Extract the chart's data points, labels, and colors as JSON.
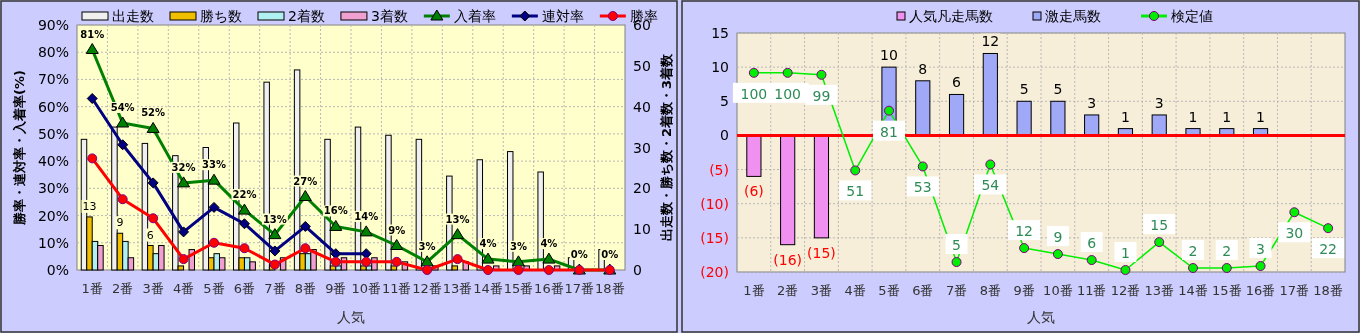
{
  "chart_data": [
    {
      "type": "bar",
      "legend": "top",
      "grid": true,
      "xlabel": "人気",
      "ylabel": "勝率・連対率・入着率(%)",
      "y2label": "出走数・勝ち数・2着数・3着数",
      "categories": [
        "1番",
        "2番",
        "3番",
        "4番",
        "5番",
        "6番",
        "7番",
        "8番",
        "9番",
        "10番",
        "11番",
        "12番",
        "13番",
        "14番",
        "15番",
        "16番",
        "17番",
        "18番"
      ],
      "ylim": [
        0,
        90
      ],
      "yticks": [
        {
          "value": 0,
          "label": "0%"
        },
        {
          "value": 10,
          "label": "10%"
        },
        {
          "value": 20,
          "label": "20%"
        },
        {
          "value": 30,
          "label": "30%"
        },
        {
          "value": 40,
          "label": "40%"
        },
        {
          "value": 50,
          "label": "50%"
        },
        {
          "value": 60,
          "label": "60%"
        },
        {
          "value": 70,
          "label": "70%"
        },
        {
          "value": 80,
          "label": "80%"
        },
        {
          "value": 90,
          "label": "90%"
        }
      ],
      "y2lim": [
        0,
        60
      ],
      "y2ticks": [
        0,
        10,
        20,
        30,
        40,
        50,
        60
      ],
      "series": [
        {
          "name": "出走数",
          "axis": "y2",
          "color": "#f0f0f0",
          "values": [
            32,
            35,
            31,
            28,
            30,
            36,
            46,
            49,
            32,
            35,
            33,
            32,
            23,
            27,
            29,
            24,
            3,
            5
          ]
        },
        {
          "name": "勝ち数",
          "axis": "y2",
          "color": "#f0c000",
          "values": [
            13,
            9,
            6,
            1,
            3,
            3,
            1,
            4,
            1,
            1,
            1,
            0,
            1,
            0,
            0,
            0,
            0,
            0
          ],
          "value_labels": [
            "13",
            "9",
            "6",
            null,
            null,
            null,
            null,
            null,
            null,
            null,
            null,
            null,
            null,
            null,
            null,
            null,
            null,
            null
          ]
        },
        {
          "name": "2着数",
          "axis": "y2",
          "color": "#b0f0f0",
          "values": [
            7,
            7,
            4,
            null,
            4,
            3,
            null,
            4,
            1,
            1,
            0,
            0,
            0,
            0,
            0,
            0,
            0,
            0
          ]
        },
        {
          "name": "3着数",
          "axis": "y2",
          "color": "#f0a0d0",
          "values": [
            6,
            3,
            6,
            5,
            3,
            2,
            3,
            5,
            3,
            3,
            2,
            1,
            2,
            1,
            1,
            1,
            0,
            0
          ]
        },
        {
          "name": "入着率",
          "type": "line",
          "axis": "y",
          "marker": "triangle",
          "color": "#008000",
          "values": [
            81,
            54,
            52,
            32,
            33,
            22,
            13,
            27,
            16,
            14,
            9,
            3,
            13,
            4,
            3,
            4,
            0,
            0
          ],
          "value_labels": [
            "81%",
            "54%",
            "52%",
            "32%",
            "33%",
            "22%",
            "13%",
            "27%",
            "16%",
            "14%",
            "9%",
            "3%",
            "13%",
            "4%",
            "3%",
            "4%",
            "0%",
            "0%"
          ]
        },
        {
          "name": "連対率",
          "type": "line",
          "axis": "y",
          "marker": "diamond",
          "color": "#000080",
          "values": [
            63,
            46,
            32,
            14,
            23,
            17,
            7,
            16,
            6,
            6,
            null,
            null,
            null,
            null,
            null,
            null,
            null,
            null
          ]
        },
        {
          "name": "勝率",
          "type": "line",
          "axis": "y",
          "marker": "circle",
          "color": "#ff0000",
          "values": [
            41,
            26,
            19,
            4,
            10,
            8,
            2,
            8,
            3,
            3,
            3,
            0,
            4,
            0,
            0,
            0,
            0,
            0
          ]
        }
      ]
    },
    {
      "type": "bar",
      "legend": "top",
      "grid": true,
      "stacked": true,
      "xlabel": "人気",
      "categories": [
        "1番",
        "2番",
        "3番",
        "4番",
        "5番",
        "6番",
        "7番",
        "8番",
        "9番",
        "10番",
        "11番",
        "12番",
        "13番",
        "14番",
        "15番",
        "16番",
        "17番",
        "18番"
      ],
      "ylim": [
        -20,
        15
      ],
      "yticks": [
        {
          "value": -20,
          "label": "(20)"
        },
        {
          "value": -15,
          "label": "(15)"
        },
        {
          "value": -10,
          "label": "(10)"
        },
        {
          "value": -5,
          "label": "(5)"
        },
        0,
        5,
        10,
        15
      ],
      "y2lim": [
        0,
        120
      ],
      "ref_lines": [
        {
          "axis": "y",
          "value": 0,
          "color": "#ff0000"
        }
      ],
      "series": [
        {
          "name": "人気凡走馬数",
          "color": "#f090f0",
          "values": [
            -6,
            -16,
            -15,
            null,
            null,
            null,
            null,
            null,
            null,
            null,
            null,
            null,
            null,
            null,
            null,
            null,
            null,
            null
          ],
          "value_labels": [
            "(6)",
            "(16)",
            "(15)",
            null,
            null,
            null,
            null,
            null,
            null,
            null,
            null,
            null,
            null,
            null,
            null,
            null,
            null,
            null
          ]
        },
        {
          "name": "激走馬数",
          "color": "#a0a8f8",
          "values": [
            null,
            null,
            null,
            null,
            10,
            8,
            6,
            12,
            5,
            5,
            3,
            1,
            3,
            1,
            1,
            1,
            null,
            null
          ],
          "value_labels": [
            null,
            null,
            null,
            null,
            "10",
            "8",
            "6",
            "12",
            "5",
            "5",
            "3",
            "1",
            "3",
            "1",
            "1",
            "1",
            null,
            null
          ]
        },
        {
          "name": "検定値",
          "type": "line",
          "axis": "y2",
          "marker": "circle",
          "color": "#00ee00",
          "values": [
            100,
            100,
            99,
            51,
            81,
            53,
            5,
            54,
            12,
            9,
            6,
            1,
            15,
            2,
            2,
            3,
            30,
            22
          ],
          "value_labels": [
            "100",
            "100",
            "99",
            "51",
            "81",
            "53",
            "5",
            "54",
            "12",
            "9",
            "6",
            "1",
            "15",
            "2",
            "2",
            "3",
            "30",
            "22"
          ]
        }
      ]
    }
  ]
}
